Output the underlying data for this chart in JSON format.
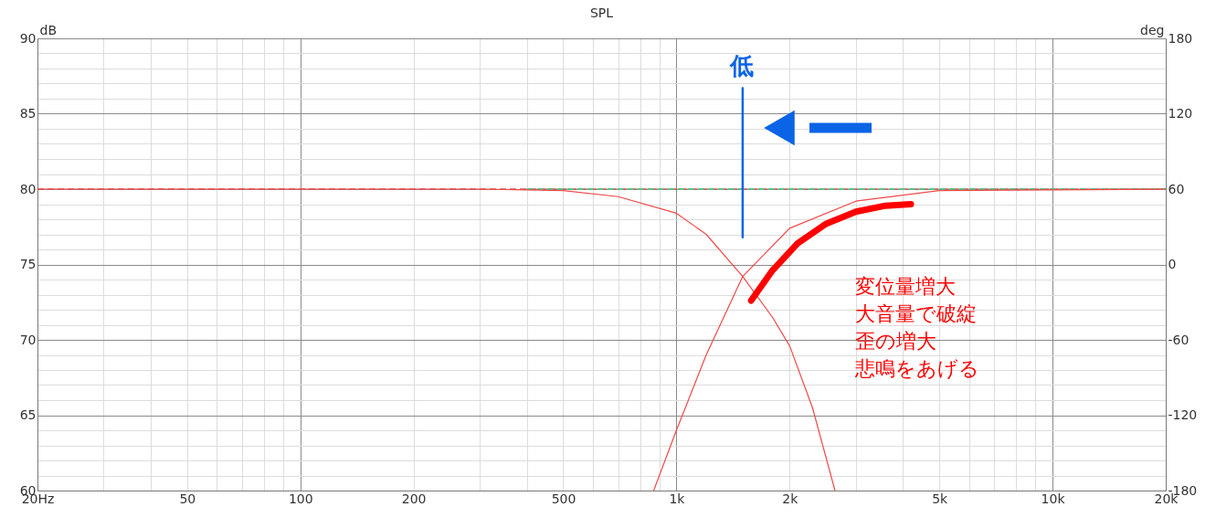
{
  "chart_data": {
    "type": "line",
    "title": "SPL",
    "ylabel": "dB",
    "y2label": "deg",
    "log": "x",
    "grid": true,
    "marker": "none",
    "xlim": [
      20,
      20000
    ],
    "ylim": [
      60,
      90
    ],
    "y2lim": [
      -180,
      180
    ],
    "xticks": [
      {
        "value": 20,
        "label": "20Hz"
      },
      {
        "value": 30,
        "label": null
      },
      {
        "value": 40,
        "label": null
      },
      50,
      {
        "value": 60,
        "label": null
      },
      {
        "value": 70,
        "label": null
      },
      {
        "value": 80,
        "label": null
      },
      {
        "value": 90,
        "label": null
      },
      100,
      200,
      {
        "value": 300,
        "label": null
      },
      {
        "value": 400,
        "label": null
      },
      500,
      {
        "value": 600,
        "label": null
      },
      {
        "value": 700,
        "label": null
      },
      {
        "value": 800,
        "label": null
      },
      {
        "value": 900,
        "label": null
      },
      {
        "value": 1000,
        "label": "1k"
      },
      {
        "value": 2000,
        "label": "2k"
      },
      {
        "value": 3000,
        "label": null
      },
      {
        "value": 4000,
        "label": null
      },
      {
        "value": 5000,
        "label": "5k"
      },
      {
        "value": 6000,
        "label": null
      },
      {
        "value": 7000,
        "label": null
      },
      {
        "value": 8000,
        "label": null
      },
      {
        "value": 9000,
        "label": null
      },
      {
        "value": 10000,
        "label": "10k"
      },
      {
        "value": 20000,
        "label": "20k"
      }
    ],
    "yticks": [
      60,
      {
        "value": 61,
        "label": null
      },
      {
        "value": 62,
        "label": null
      },
      {
        "value": 63,
        "label": null
      },
      {
        "value": 64,
        "label": null
      },
      65,
      {
        "value": 66,
        "label": null
      },
      {
        "value": 67,
        "label": null
      },
      {
        "value": 68,
        "label": null
      },
      {
        "value": 69,
        "label": null
      },
      70,
      {
        "value": 71,
        "label": null
      },
      {
        "value": 72,
        "label": null
      },
      {
        "value": 73,
        "label": null
      },
      {
        "value": 74,
        "label": null
      },
      75,
      {
        "value": 76,
        "label": null
      },
      {
        "value": 77,
        "label": null
      },
      {
        "value": 78,
        "label": null
      },
      {
        "value": 79,
        "label": null
      },
      80,
      {
        "value": 81,
        "label": null
      },
      {
        "value": 82,
        "label": null
      },
      {
        "value": 83,
        "label": null
      },
      {
        "value": 84,
        "label": null
      },
      85,
      {
        "value": 86,
        "label": null
      },
      {
        "value": 87,
        "label": null
      },
      {
        "value": 88,
        "label": null
      },
      {
        "value": 89,
        "label": null
      },
      90
    ],
    "y2ticks": [
      -180,
      -120,
      -60,
      0,
      60,
      120,
      180
    ],
    "series": [
      {
        "color": "#e05050",
        "line_style": "dashed",
        "x": [
          20,
          20000
        ],
        "values": [
          80,
          80
        ]
      },
      {
        "color": "#5cbf8a",
        "line_style": "dashed",
        "x": [
          400,
          20000
        ],
        "values": [
          80,
          80
        ]
      },
      {
        "color": "#f04848",
        "line_style": "solid",
        "x": [
          20,
          300,
          500,
          700,
          1000,
          1200,
          1500,
          1800,
          2000,
          2300,
          2640
        ],
        "values": [
          80,
          80,
          79.9,
          79.5,
          78.4,
          77,
          74.2,
          71.5,
          69.6,
          65.5,
          60
        ]
      },
      {
        "color": "#f04848",
        "line_style": "solid",
        "x": [
          870,
          1000,
          1200,
          1500,
          2000,
          3000,
          5000,
          20000
        ],
        "values": [
          60,
          64,
          69,
          74.2,
          77.4,
          79.2,
          79.9,
          80
        ]
      },
      {
        "color": "#ff0000",
        "line_style": "solid",
        "x": [
          1580,
          1800,
          2100,
          2500,
          3000,
          3600,
          4200
        ],
        "values": [
          72.6,
          74.6,
          76.4,
          77.7,
          78.5,
          78.9,
          79
        ]
      },
      {
        "color": "#0a64e6",
        "line_style": "solid",
        "x": [
          1500,
          1500
        ],
        "values": [
          76.8,
          86.7
        ]
      }
    ],
    "annotations": [
      "低",
      "変位量増大",
      "大音量で破綻",
      "歪の増大",
      "悲鳴をあげる"
    ]
  }
}
